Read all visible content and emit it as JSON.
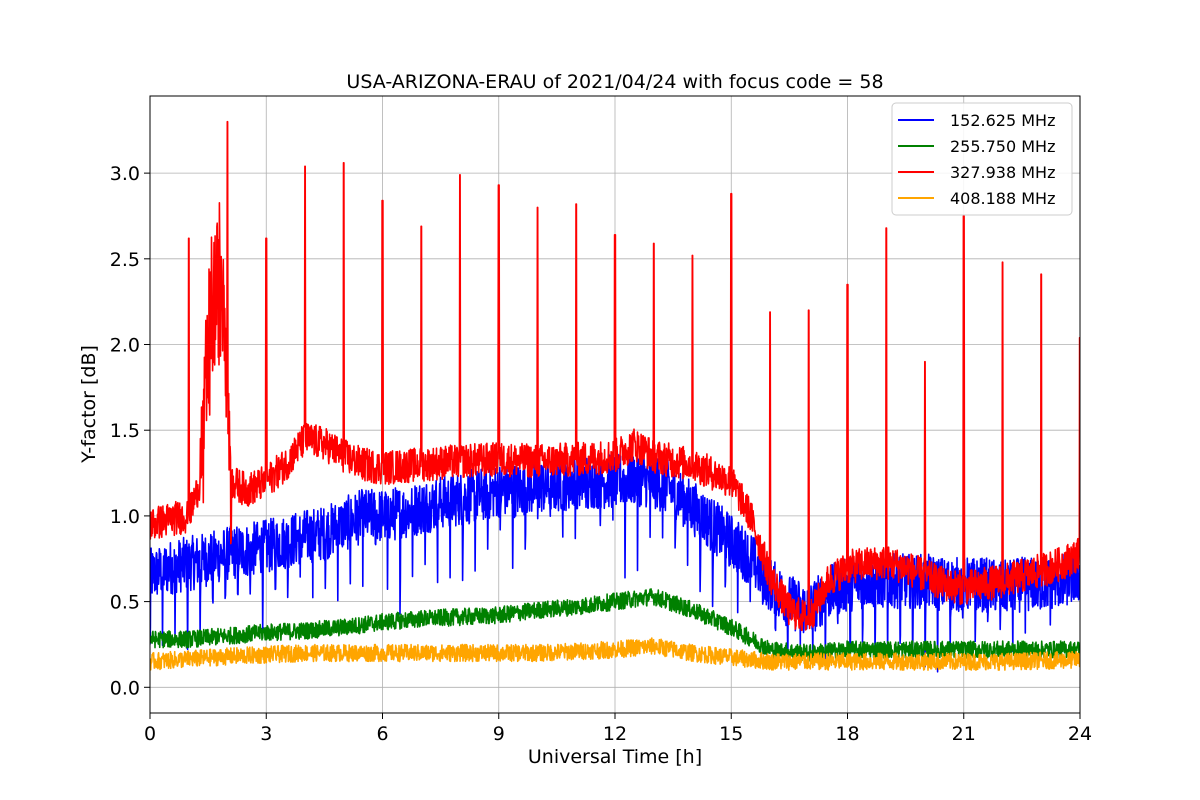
{
  "chart_data": {
    "type": "line",
    "title": "USA-ARIZONA-ERAU of 2021/04/24 with focus code = 58",
    "xlabel": "Universal Time [h]",
    "ylabel": "Y-factor [dB]",
    "xlim": [
      0,
      24
    ],
    "ylim": [
      -0.15,
      3.45
    ],
    "xticks": [
      0,
      3,
      6,
      9,
      12,
      15,
      18,
      21,
      24
    ],
    "xtick_labels": [
      "0",
      "3",
      "6",
      "9",
      "12",
      "15",
      "18",
      "21",
      "24"
    ],
    "yticks": [
      0.0,
      0.5,
      1.0,
      1.5,
      2.0,
      2.5,
      3.0
    ],
    "ytick_labels": [
      "0.0",
      "0.5",
      "1.0",
      "1.5",
      "2.0",
      "2.5",
      "3.0"
    ],
    "grid": true,
    "legend_position": "top-right",
    "series": [
      {
        "name": "152.625 MHz",
        "color": "#0000ff",
        "x": [
          0,
          0.5,
          1,
          1.5,
          2,
          2.5,
          3,
          3.5,
          4,
          4.5,
          5,
          5.5,
          6,
          6.5,
          7,
          7.5,
          8,
          8.5,
          9,
          9.5,
          10,
          10.5,
          11,
          11.5,
          12,
          12.5,
          13,
          13.5,
          14,
          14.5,
          15,
          15.5,
          16,
          16.5,
          17,
          17.5,
          18,
          18.5,
          19,
          19.5,
          20,
          20.5,
          21,
          21.5,
          22,
          22.5,
          23,
          23.5,
          24
        ],
        "values": [
          0.65,
          0.7,
          0.72,
          0.75,
          0.78,
          0.8,
          0.82,
          0.85,
          0.88,
          0.9,
          0.95,
          1.0,
          1.0,
          1.02,
          1.05,
          1.08,
          1.1,
          1.12,
          1.15,
          1.15,
          1.17,
          1.18,
          1.2,
          1.2,
          1.2,
          1.22,
          1.2,
          1.15,
          1.05,
          0.95,
          0.85,
          0.75,
          0.6,
          0.5,
          0.45,
          0.55,
          0.6,
          0.62,
          0.62,
          0.62,
          0.62,
          0.6,
          0.6,
          0.6,
          0.58,
          0.6,
          0.6,
          0.62,
          0.65
        ]
      },
      {
        "name": "255.750 MHz",
        "color": "#008000",
        "x": [
          0,
          1,
          2,
          3,
          4,
          5,
          6,
          7,
          8,
          9,
          10,
          11,
          12,
          13,
          14,
          15,
          16,
          17,
          18,
          19,
          20,
          21,
          22,
          23,
          24
        ],
        "values": [
          0.28,
          0.28,
          0.3,
          0.32,
          0.33,
          0.35,
          0.38,
          0.4,
          0.41,
          0.42,
          0.45,
          0.47,
          0.5,
          0.53,
          0.45,
          0.35,
          0.22,
          0.2,
          0.22,
          0.22,
          0.22,
          0.22,
          0.22,
          0.22,
          0.22
        ]
      },
      {
        "name": "327.938 MHz",
        "color": "#ff0000",
        "x": [
          0,
          0.5,
          1,
          1.3,
          1.6,
          1.9,
          2.1,
          2.5,
          3,
          3.5,
          4,
          4.5,
          5,
          5.5,
          6,
          7,
          8,
          9,
          10,
          11,
          12,
          12.5,
          13,
          13.5,
          14,
          14.5,
          15,
          15.5,
          16,
          16.5,
          17,
          17.5,
          18,
          18.5,
          19,
          19.5,
          20,
          20.5,
          21,
          21.5,
          22,
          22.5,
          23,
          23.5,
          24
        ],
        "values": [
          0.95,
          0.98,
          1.0,
          1.2,
          2.2,
          2.4,
          1.2,
          1.15,
          1.2,
          1.3,
          1.45,
          1.42,
          1.35,
          1.3,
          1.28,
          1.3,
          1.32,
          1.33,
          1.32,
          1.33,
          1.35,
          1.42,
          1.35,
          1.32,
          1.3,
          1.25,
          1.2,
          1.0,
          0.65,
          0.45,
          0.4,
          0.62,
          0.7,
          0.72,
          0.73,
          0.7,
          0.65,
          0.6,
          0.58,
          0.6,
          0.62,
          0.65,
          0.68,
          0.72,
          0.78
        ]
      },
      {
        "name": "408.188 MHz",
        "color": "#ffa500",
        "x": [
          0,
          2,
          4,
          6,
          8,
          10,
          12,
          13,
          14,
          16,
          18,
          20,
          22,
          24
        ],
        "values": [
          0.15,
          0.18,
          0.2,
          0.2,
          0.2,
          0.2,
          0.22,
          0.24,
          0.2,
          0.15,
          0.15,
          0.15,
          0.15,
          0.16
        ]
      }
    ],
    "spikes": {
      "series": "327.938 MHz",
      "x": [
        1,
        2,
        3,
        4,
        5,
        6,
        7,
        8,
        9,
        10,
        11,
        12,
        13,
        14,
        15,
        16,
        17,
        18,
        19,
        20,
        21,
        22,
        23,
        24
      ],
      "peak": [
        2.62,
        3.3,
        2.62,
        3.04,
        3.06,
        2.84,
        2.69,
        2.99,
        2.93,
        2.8,
        2.82,
        2.64,
        2.59,
        2.52,
        2.88,
        2.19,
        2.2,
        2.35,
        2.68,
        1.9,
        2.75,
        2.48,
        2.41,
        2.04
      ]
    }
  }
}
